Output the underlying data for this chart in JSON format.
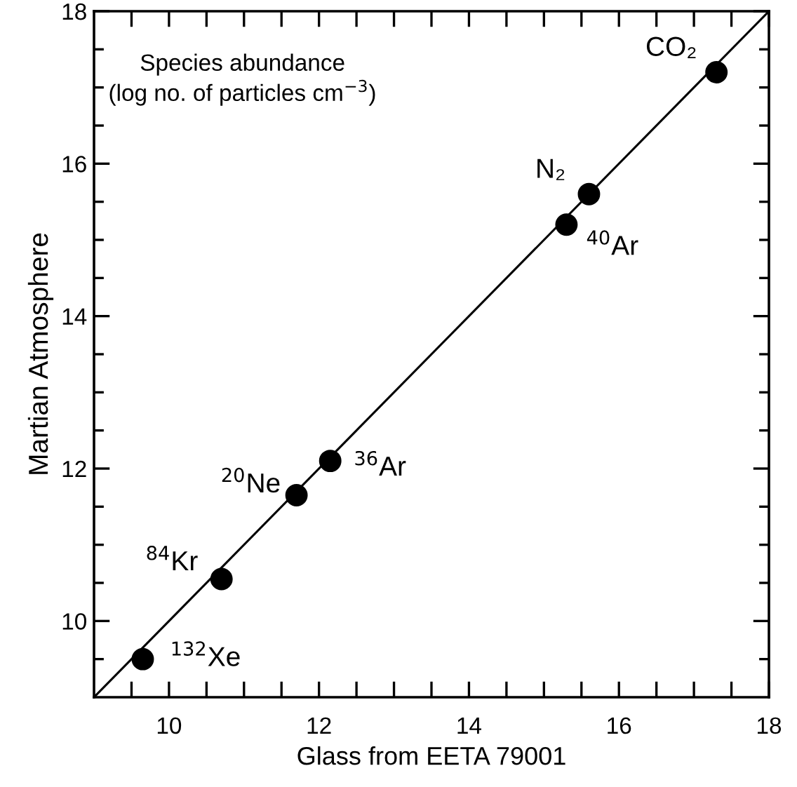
{
  "chart_data": {
    "type": "scatter",
    "xlabel": "Glass from EETA 79001",
    "ylabel": "Martian Atmosphere",
    "xlim": [
      9,
      18
    ],
    "ylim": [
      9,
      18
    ],
    "xticks": [
      {
        "value": 9.5,
        "label": null
      },
      10,
      {
        "value": 10.5,
        "label": null
      },
      {
        "value": 11,
        "label": null
      },
      {
        "value": 11.5,
        "label": null
      },
      12,
      {
        "value": 12.5,
        "label": null
      },
      {
        "value": 13,
        "label": null
      },
      {
        "value": 13.5,
        "label": null
      },
      14,
      {
        "value": 14.5,
        "label": null
      },
      {
        "value": 15,
        "label": null
      },
      {
        "value": 15.5,
        "label": null
      },
      16,
      {
        "value": 16.5,
        "label": null
      },
      {
        "value": 17,
        "label": null
      },
      {
        "value": 17.5,
        "label": null
      },
      18
    ],
    "yticks": [
      {
        "value": 9.5,
        "label": null
      },
      10,
      {
        "value": 10.5,
        "label": null
      },
      {
        "value": 11,
        "label": null
      },
      {
        "value": 11.5,
        "label": null
      },
      12,
      {
        "value": 12.5,
        "label": null
      },
      {
        "value": 13,
        "label": null
      },
      {
        "value": 13.5,
        "label": null
      },
      14,
      {
        "value": 14.5,
        "label": null
      },
      {
        "value": 15,
        "label": null
      },
      {
        "value": 15.5,
        "label": null
      },
      16,
      {
        "value": 16.5,
        "label": null
      },
      {
        "value": 17,
        "label": null
      },
      {
        "value": 17.5,
        "label": null
      },
      18
    ],
    "grid": false,
    "series": [
      {
        "color": "#000000",
        "marker": "circle",
        "x": [
          9.65,
          10.7,
          11.7,
          12.15,
          15.3,
          15.6,
          17.3
        ],
        "values": [
          9.5,
          10.55,
          11.65,
          12.1,
          15.2,
          15.6,
          17.2
        ]
      },
      {
        "type": "line",
        "color": "#000000",
        "marker": "none",
        "line_style": "solid",
        "x": [
          9,
          18
        ],
        "values": [
          9,
          18
        ]
      }
    ],
    "annotations": [
      "Species abundance\n(log no. of particles cm$^{−3}$)",
      {
        "text": "$^{132}$Xe",
        "x": 9.65,
        "y": 9.5
      },
      {
        "text": "$^{84}$Kr",
        "x": 10.7,
        "y": 10.55
      },
      {
        "text": "$^{20}$Ne",
        "x": 11.7,
        "y": 11.65
      },
      {
        "text": "$^{36}$Ar",
        "x": 12.15,
        "y": 12.1
      },
      {
        "text": "$^{40}$Ar",
        "x": 15.3,
        "y": 15.2
      },
      {
        "text": "N₂",
        "x": 15.6,
        "y": 15.6
      },
      {
        "text": "CO₂",
        "x": 17.3,
        "y": 17.2
      }
    ]
  }
}
